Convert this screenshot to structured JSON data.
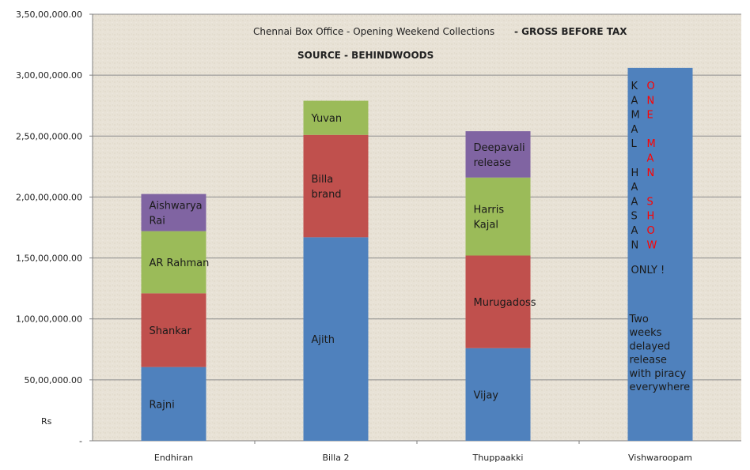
{
  "chart_data": {
    "type": "bar",
    "stacked": true,
    "title": "Chennai Box Office - Opening Weekend Collections",
    "title_suffix": "- GROSS BEFORE TAX",
    "subtitle": "SOURCE -  BEHINDWOODS",
    "ylabel": "Rs",
    "ylim": [
      0,
      35000000
    ],
    "yticks": [
      "-",
      "50,00,000.00",
      "1,00,00,000.00",
      "1,50,00,000.00",
      "2,00,00,000.00",
      "2,50,00,000.00",
      "3,00,00,000.00",
      "3,50,00,000.00"
    ],
    "grid": true,
    "colors": {
      "blue": "#4F81BD",
      "red": "#C0504D",
      "green": "#9BBB59",
      "purple": "#8064A2",
      "plot_bg": "#E8E2D6",
      "accent_red": "#FF0000"
    },
    "categories": [
      "Endhiran",
      "Billa 2",
      "Thuppaakki",
      "Vishwaroopam"
    ],
    "bars": [
      {
        "category": "Endhiran",
        "segments": [
          {
            "label": [
              "Rajni"
            ],
            "value": 6050000,
            "color": "#4F81BD"
          },
          {
            "label": [
              "Shankar"
            ],
            "value": 6050000,
            "color": "#C0504D"
          },
          {
            "label": [
              "AR Rahman"
            ],
            "value": 5100000,
            "color": "#9BBB59"
          },
          {
            "label": [
              "Aishwarya",
              "Rai"
            ],
            "value": 3050000,
            "color": "#8064A2"
          }
        ]
      },
      {
        "category": "Billa 2",
        "segments": [
          {
            "label": [
              "Ajith"
            ],
            "value": 16700000,
            "color": "#4F81BD"
          },
          {
            "label": [
              "Billa",
              "brand"
            ],
            "value": 8400000,
            "color": "#C0504D"
          },
          {
            "label": [
              "Yuvan"
            ],
            "value": 2800000,
            "color": "#9BBB59"
          }
        ]
      },
      {
        "category": "Thuppaakki",
        "segments": [
          {
            "label": [
              "Vijay"
            ],
            "value": 7600000,
            "color": "#4F81BD"
          },
          {
            "label": [
              "Murugadoss"
            ],
            "value": 7600000,
            "color": "#C0504D"
          },
          {
            "label": [
              "Harris",
              "Kajal"
            ],
            "value": 6400000,
            "color": "#9BBB59"
          },
          {
            "label": [
              "Deepavali",
              "release"
            ],
            "value": 3800000,
            "color": "#8064A2"
          }
        ]
      },
      {
        "category": "Vishwaroopam",
        "segments": [
          {
            "label": [],
            "value": 30600000,
            "color": "#4F81BD"
          }
        ]
      }
    ],
    "annotations": {
      "kamal_letters": [
        "K",
        "A",
        "M",
        "A",
        "L",
        "",
        "H",
        "A",
        "A",
        "S",
        "A",
        "N"
      ],
      "one_man_show_letters": [
        "O",
        "N",
        "E",
        "",
        "M",
        "A",
        "N",
        "",
        "S",
        "H",
        "O",
        "W"
      ],
      "only": "ONLY !",
      "note_lines": [
        "Two",
        "weeks",
        "delayed",
        "release",
        "with piracy",
        "everywhere"
      ]
    }
  }
}
